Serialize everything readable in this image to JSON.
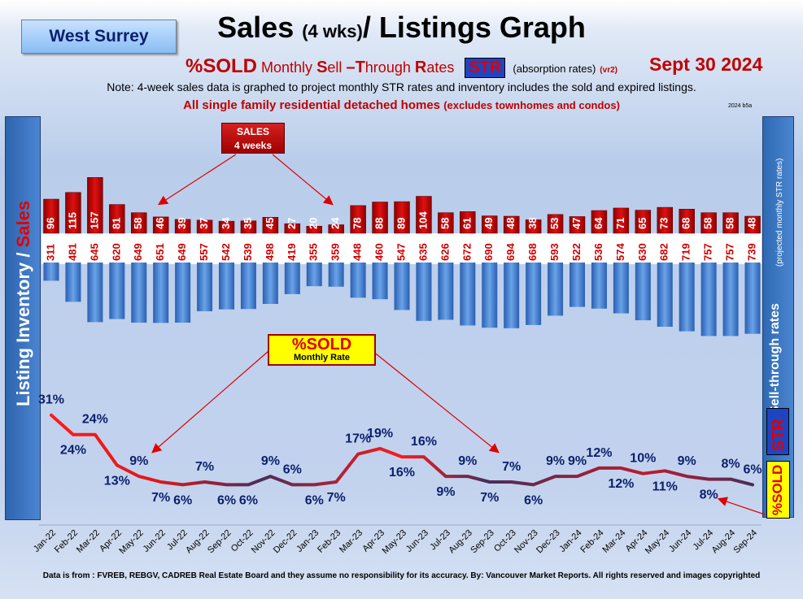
{
  "header": {
    "region": "West Surrey",
    "title_main": "Sales",
    "title_paren": "(4 wks)",
    "title_rest": "/ Listings Graph",
    "sub_sold": "%SOLD",
    "sub_pre1": "Monthly",
    "sub_s": "S",
    "sub_ell": "ell",
    "sub_dash": "–",
    "sub_t": "T",
    "sub_hrough": "hrough",
    "sub_r": "R",
    "sub_ates": "ates",
    "str": "STR",
    "absorption": "(absorption rates)",
    "vr": "(vr2)",
    "date": "Sept  30  2024",
    "note": "Note: 4-week sales data is graphed to project monthly STR rates and inventory includes the sold and expired listings.",
    "note2_main": "All single family residential detached homes",
    "note2_paren": "(excludes townhomes and condos)",
    "version": "2024 b5a"
  },
  "side": {
    "left_inventory": "Listing Inventory /",
    "left_sales": "Sales",
    "right_main": "Sell-through rates",
    "right_sub": "(projected monthly STR rates)",
    "str": "STR",
    "sold": "%SOLD"
  },
  "callouts": {
    "sales_line1": "SALES",
    "sales_line2": "4  weeks",
    "sold_line1": "%SOLD",
    "sold_line2": "Monthly Rate"
  },
  "footer": "Data is from : FVREB, REBGV, CADREB Real Estate Board and they assume no responsibility for its accuracy. By: Vancouver Market Reports. All rights reserved and  images copyrighted",
  "colors": {
    "sales_bar": "#c00000",
    "inventory_bar": "#4a86d4",
    "line_red": "#ff1a1a",
    "line_dark": "#4a2d5a",
    "pct_label": "#0b1f6b"
  },
  "chart_data": {
    "type": "bar",
    "categories": [
      "Jan-22",
      "Feb-22",
      "Mar-22",
      "Apr-22",
      "May-22",
      "Jun-22",
      "Jul-22",
      "Aug-22",
      "Sep-22",
      "Oct-22",
      "Nov-22",
      "Dec-22",
      "Jan-23",
      "Feb-23",
      "Mar-23",
      "Apr-23",
      "May-23",
      "Jun-23",
      "Jul-23",
      "Aug-23",
      "Sep-23",
      "Oct-23",
      "Nov-23",
      "Dec-23",
      "Jan-24",
      "Feb-24",
      "Mar-24",
      "Apr-24",
      "May-24",
      "Jun-24",
      "Jul-24",
      "Aug-24",
      "Sep-24"
    ],
    "series": [
      {
        "name": "Sales",
        "type": "bar",
        "values": [
          96,
          115,
          157,
          81,
          58,
          46,
          39,
          37,
          34,
          35,
          45,
          27,
          20,
          24,
          78,
          88,
          89,
          104,
          58,
          61,
          49,
          48,
          38,
          53,
          47,
          64,
          71,
          65,
          73,
          68,
          58,
          58,
          48
        ]
      },
      {
        "name": "Listing Inventory",
        "type": "bar",
        "values": [
          311,
          481,
          645,
          620,
          649,
          651,
          649,
          557,
          542,
          539,
          498,
          419,
          355,
          359,
          448,
          460,
          547,
          635,
          626,
          672,
          690,
          694,
          668,
          593,
          522,
          536,
          574,
          630,
          682,
          719,
          757,
          757,
          739
        ]
      },
      {
        "name": "%SOLD Monthly Rate",
        "type": "line",
        "values": [
          31,
          24,
          24,
          13,
          9,
          7,
          6,
          7,
          6,
          6,
          9,
          6,
          6,
          7,
          17,
          19,
          16,
          16,
          9,
          9,
          7,
          7,
          6,
          9,
          9,
          12,
          12,
          10,
          11,
          9,
          8,
          8,
          6
        ]
      }
    ],
    "sold_labels": [
      "31%",
      "24%",
      "24%",
      "13%",
      "9%",
      "7%",
      "6%",
      "7%",
      "6%",
      "6%",
      "9%",
      "6%",
      "6%",
      "7%",
      "17%",
      "19%",
      "16%",
      "16%",
      "9%",
      "9%",
      "7%",
      "7%",
      "6%",
      "9%",
      "9%",
      "12%",
      "12%",
      "10%",
      "11%",
      "9%",
      "8%",
      "8%",
      "6%"
    ],
    "sold_label_pos": [
      "above",
      "below",
      "above",
      "below",
      "above",
      "below",
      "below",
      "above",
      "below",
      "below",
      "above",
      "above",
      "below",
      "below",
      "above",
      "above",
      "below",
      "above",
      "below",
      "above",
      "below",
      "above",
      "below",
      "above",
      "above",
      "above",
      "below",
      "above",
      "below",
      "above",
      "below",
      "above",
      "above"
    ],
    "sales_ylim": [
      0,
      160
    ],
    "inventory_ylim": [
      0,
      800
    ],
    "sold_ylim": [
      0,
      35
    ],
    "grid": false,
    "legend": "none"
  }
}
